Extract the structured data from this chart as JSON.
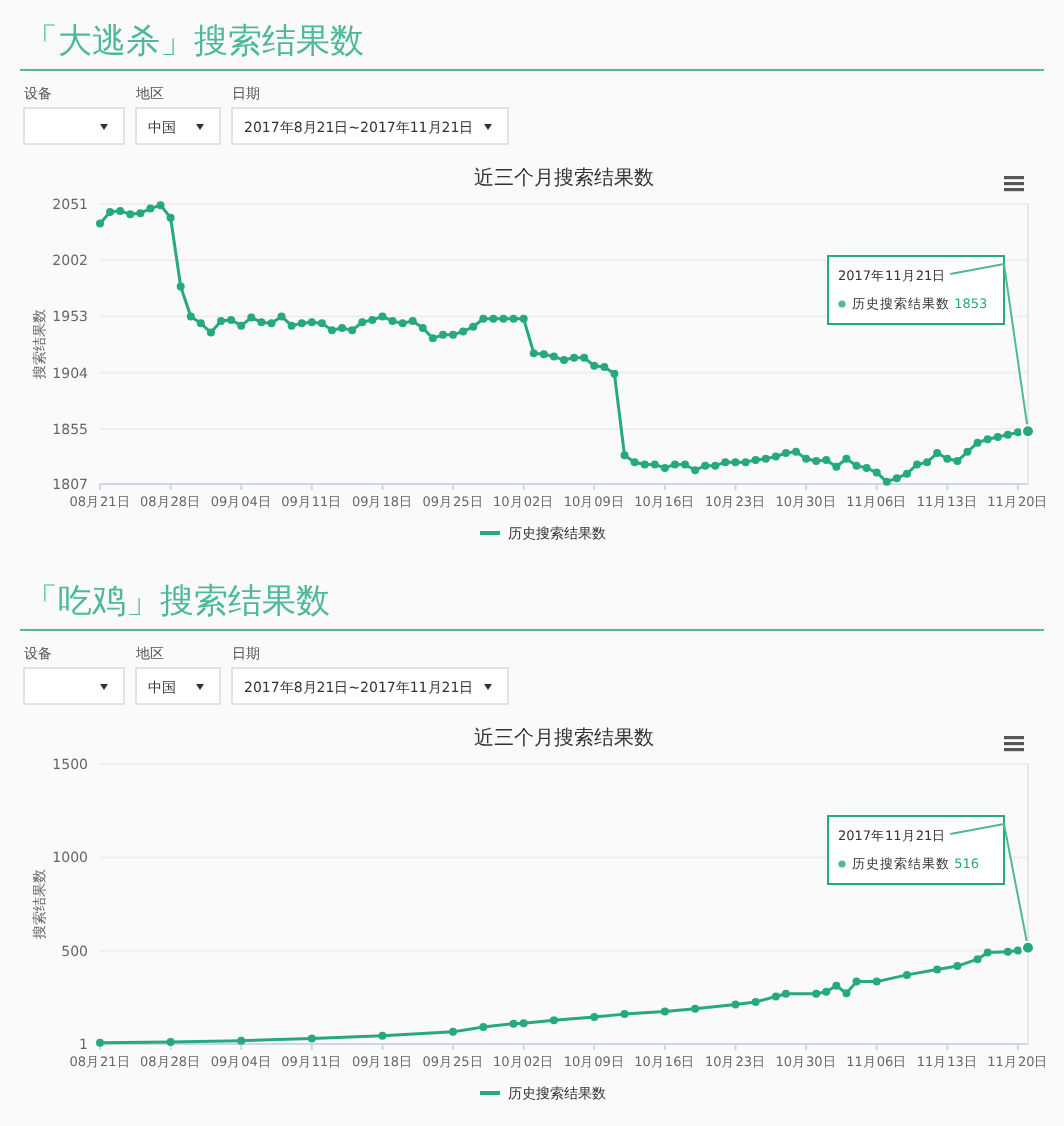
{
  "chart_data": [
    {
      "type": "line",
      "title": "「大逃杀」搜索结果数",
      "subtitle": "近三个月搜索结果数",
      "ylabel": "搜索结果数",
      "legend": "bottom",
      "grid": "y",
      "marker": "circle",
      "line_style": "solid",
      "annotations": [
        "设备",
        "地区",
        "日期",
        "中国",
        "2017年8月21日~2017年11月21日",
        {
          "text": "2017年11月21日",
          "x": "2017-11-21",
          "y": 1853
        },
        "历史搜索结果数 1853"
      ],
      "xlim": [
        "2017-08-21",
        "2017-11-21"
      ],
      "xticks": [
        {
          "value": "2017-08-21",
          "label": "08月21日"
        },
        {
          "value": "2017-08-28",
          "label": "08月28日"
        },
        {
          "value": "2017-09-04",
          "label": "09月04日"
        },
        {
          "value": "2017-09-11",
          "label": "09月11日"
        },
        {
          "value": "2017-09-18",
          "label": "09月18日"
        },
        {
          "value": "2017-09-25",
          "label": "09月25日"
        },
        {
          "value": "2017-10-02",
          "label": "10月02日"
        },
        {
          "value": "2017-10-09",
          "label": "10月09日"
        },
        {
          "value": "2017-10-16",
          "label": "10月16日"
        },
        {
          "value": "2017-10-23",
          "label": "10月23日"
        },
        {
          "value": "2017-10-30",
          "label": "10月30日"
        },
        {
          "value": "2017-11-06",
          "label": "11月06日"
        },
        {
          "value": "2017-11-13",
          "label": "11月13日"
        },
        {
          "value": "2017-11-20",
          "label": "11月20日"
        }
      ],
      "ylim": [
        1807,
        2051
      ],
      "yticks": [
        1807,
        1855,
        1904,
        1953,
        2002,
        2051
      ],
      "series": [
        {
          "name": "历史搜索结果数",
          "color": "#26a97f",
          "x": [
            "2017-08-21",
            "2017-08-22",
            "2017-08-23",
            "2017-08-24",
            "2017-08-25",
            "2017-08-26",
            "2017-08-27",
            "2017-08-28",
            "2017-08-29",
            "2017-08-30",
            "2017-08-31",
            "2017-09-01",
            "2017-09-02",
            "2017-09-03",
            "2017-09-04",
            "2017-09-05",
            "2017-09-06",
            "2017-09-07",
            "2017-09-08",
            "2017-09-09",
            "2017-09-10",
            "2017-09-11",
            "2017-09-12",
            "2017-09-13",
            "2017-09-14",
            "2017-09-15",
            "2017-09-16",
            "2017-09-17",
            "2017-09-18",
            "2017-09-19",
            "2017-09-20",
            "2017-09-21",
            "2017-09-22",
            "2017-09-23",
            "2017-09-24",
            "2017-09-25",
            "2017-09-26",
            "2017-09-27",
            "2017-09-28",
            "2017-09-29",
            "2017-09-30",
            "2017-10-01",
            "2017-10-02",
            "2017-10-03",
            "2017-10-04",
            "2017-10-05",
            "2017-10-06",
            "2017-10-07",
            "2017-10-08",
            "2017-10-09",
            "2017-10-10",
            "2017-10-11",
            "2017-10-12",
            "2017-10-13",
            "2017-10-14",
            "2017-10-15",
            "2017-10-16",
            "2017-10-17",
            "2017-10-18",
            "2017-10-19",
            "2017-10-20",
            "2017-10-21",
            "2017-10-22",
            "2017-10-23",
            "2017-10-24",
            "2017-10-25",
            "2017-10-26",
            "2017-10-27",
            "2017-10-28",
            "2017-10-29",
            "2017-10-30",
            "2017-10-31",
            "2017-11-01",
            "2017-11-02",
            "2017-11-03",
            "2017-11-04",
            "2017-11-05",
            "2017-11-06",
            "2017-11-07",
            "2017-11-08",
            "2017-11-09",
            "2017-11-10",
            "2017-11-11",
            "2017-11-12",
            "2017-11-13",
            "2017-11-14",
            "2017-11-15",
            "2017-11-16",
            "2017-11-17",
            "2017-11-18",
            "2017-11-19",
            "2017-11-20",
            "2017-11-21"
          ],
          "values": [
            2034,
            2044,
            2045,
            2042,
            2043,
            2047,
            2050,
            2039,
            1979,
            1953,
            1947,
            1939,
            1949,
            1950,
            1945,
            1952,
            1948,
            1947,
            1953,
            1945,
            1947,
            1948,
            1947,
            1941,
            1943,
            1941,
            1948,
            1950,
            1953,
            1949,
            1947,
            1949,
            1943,
            1934,
            1937,
            1937,
            1940,
            1944,
            1951,
            1951,
            1951,
            1951,
            1951,
            1921,
            1920,
            1918,
            1915,
            1917,
            1917,
            1910,
            1909,
            1903,
            1832,
            1826,
            1824,
            1824,
            1821,
            1824,
            1824,
            1819,
            1823,
            1823,
            1826,
            1826,
            1826,
            1828,
            1829,
            1831,
            1834,
            1835,
            1829,
            1827,
            1828,
            1822,
            1829,
            1823,
            1821,
            1817,
            1809,
            1812,
            1816,
            1824,
            1826,
            1834,
            1829,
            1827,
            1835,
            1843,
            1846,
            1848,
            1850,
            1852,
            1853
          ]
        }
      ]
    },
    {
      "type": "line",
      "title": "「吃鸡」搜索结果数",
      "subtitle": "近三个月搜索结果数",
      "ylabel": "搜索结果数",
      "legend": "bottom",
      "grid": "y",
      "marker": "circle",
      "line_style": "solid",
      "annotations": [
        "设备",
        "地区",
        "日期",
        "中国",
        "2017年8月21日~2017年11月21日",
        {
          "text": "2017年11月21日",
          "x": "2017-11-21",
          "y": 516
        },
        "历史搜索结果数 516"
      ],
      "xlim": [
        "2017-08-21",
        "2017-11-21"
      ],
      "xticks": [
        {
          "value": "2017-08-21",
          "label": "08月21日"
        },
        {
          "value": "2017-08-28",
          "label": "08月28日"
        },
        {
          "value": "2017-09-04",
          "label": "09月04日"
        },
        {
          "value": "2017-09-11",
          "label": "09月11日"
        },
        {
          "value": "2017-09-18",
          "label": "09月18日"
        },
        {
          "value": "2017-09-25",
          "label": "09月25日"
        },
        {
          "value": "2017-10-02",
          "label": "10月02日"
        },
        {
          "value": "2017-10-09",
          "label": "10月09日"
        },
        {
          "value": "2017-10-16",
          "label": "10月16日"
        },
        {
          "value": "2017-10-23",
          "label": "10月23日"
        },
        {
          "value": "2017-10-30",
          "label": "10月30日"
        },
        {
          "value": "2017-11-06",
          "label": "11月06日"
        },
        {
          "value": "2017-11-13",
          "label": "11月13日"
        },
        {
          "value": "2017-11-20",
          "label": "11月20日"
        }
      ],
      "ylim": [
        1,
        1500
      ],
      "yticks": [
        1,
        500,
        1000,
        1500
      ],
      "series": [
        {
          "name": "历史搜索结果数",
          "color": "#26a97f",
          "x": [
            "2017-08-21",
            "2017-08-28",
            "2017-09-04",
            "2017-09-11",
            "2017-09-18",
            "2017-09-25",
            "2017-09-28",
            "2017-10-01",
            "2017-10-02",
            "2017-10-05",
            "2017-10-09",
            "2017-10-12",
            "2017-10-16",
            "2017-10-19",
            "2017-10-23",
            "2017-10-25",
            "2017-10-27",
            "2017-10-28",
            "2017-10-31",
            "2017-11-01",
            "2017-11-02",
            "2017-11-03",
            "2017-11-04",
            "2017-11-06",
            "2017-11-09",
            "2017-11-12",
            "2017-11-14",
            "2017-11-16",
            "2017-11-17",
            "2017-11-19",
            "2017-11-20",
            "2017-11-21"
          ],
          "values": [
            8,
            12,
            19,
            30,
            45,
            66,
            92,
            110,
            112,
            128,
            146,
            161,
            175,
            190,
            212,
            226,
            255,
            270,
            270,
            281,
            313,
            273,
            335,
            335,
            371,
            400,
            418,
            455,
            491,
            495,
            502,
            516
          ]
        }
      ]
    }
  ]
}
